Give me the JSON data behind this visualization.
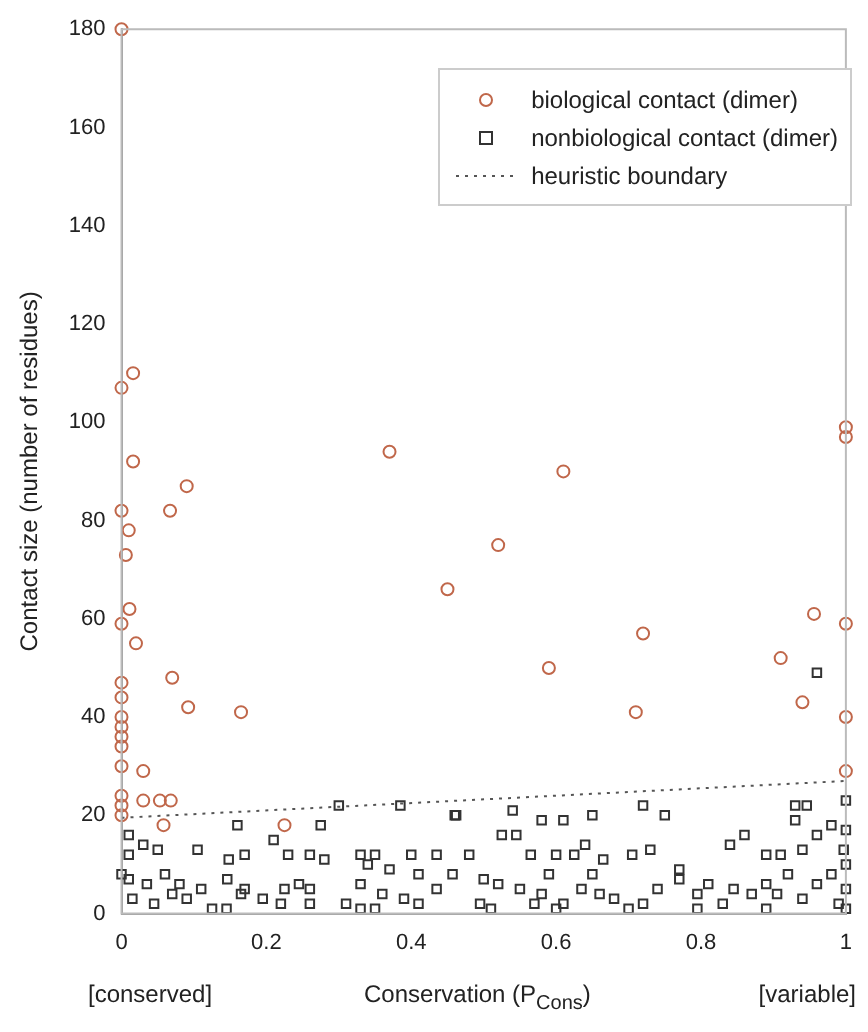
{
  "chart_data": {
    "type": "scatter",
    "xlabel": "Conservation (P$_{Cons}$)",
    "ylabel": "Contact size (number of residues)",
    "annotations": [
      "[conserved]",
      "[variable]"
    ],
    "xlim": [
      0,
      1
    ],
    "xticks": [
      0,
      0.2,
      0.4,
      0.6,
      0.8,
      1
    ],
    "ylim": [
      0,
      180
    ],
    "yticks": [
      0,
      20,
      40,
      60,
      80,
      100,
      120,
      140,
      160,
      180
    ],
    "grid": false,
    "legend": "top right",
    "series": [
      {
        "name": "biological contact (dimer)",
        "color": "#c0674a",
        "marker": "circle",
        "x": [
          0,
          0,
          0.016,
          0.016,
          0,
          0.01,
          0.006,
          0.067,
          0.09,
          0.37,
          0.61,
          0.52,
          1,
          1,
          0.45,
          0.011,
          0,
          0.02,
          0.07,
          0.092,
          0.165,
          0.59,
          0.72,
          0.71,
          0.91,
          0.956,
          0.94,
          1,
          1,
          0,
          0,
          0,
          0,
          0,
          0,
          0,
          0.03,
          0,
          0.03,
          0.053,
          0.068,
          0.058,
          0.225,
          1,
          0,
          0
        ],
        "values": [
          180,
          107,
          110,
          92,
          82,
          78,
          73,
          82,
          87,
          94,
          90,
          75,
          99,
          97,
          66,
          62,
          59,
          55,
          48,
          42,
          41,
          50,
          57,
          41,
          52,
          61,
          43,
          59,
          40,
          47,
          44,
          40,
          38,
          36,
          34,
          30,
          29,
          24,
          23,
          23,
          23,
          18,
          18,
          29,
          22,
          20
        ]
      },
      {
        "name": "nonbiological contact (dimer)",
        "color": "#333333",
        "marker": "square",
        "x": [
          0.3,
          0.385,
          0.46,
          0.16,
          0.275,
          0.01,
          0.03,
          0.01,
          0.05,
          0.105,
          0.148,
          0.17,
          0.21,
          0.23,
          0.26,
          0.28,
          0.33,
          0.35,
          0.37,
          0.4,
          0.41,
          0,
          0.01,
          0.035,
          0.06,
          0.08,
          0.11,
          0.146,
          0.165,
          0.125,
          0.145,
          0.17,
          0.195,
          0.22,
          0.225,
          0.245,
          0.26,
          0.26,
          0.31,
          0.33,
          0.35,
          0.36,
          0.39,
          0.41,
          0.015,
          0.045,
          0.07,
          0.09,
          0.33,
          0.34,
          0.462,
          0.54,
          0.58,
          0.61,
          0.65,
          0.72,
          0.75,
          0.93,
          0.946,
          0.93,
          0.435,
          0.48,
          0.525,
          0.545,
          0.565,
          0.6,
          0.625,
          0.64,
          0.665,
          0.705,
          0.73,
          0.77,
          0.84,
          0.86,
          0.89,
          0.91,
          0.94,
          0.96,
          0.98,
          1,
          0.435,
          0.457,
          0.5,
          0.52,
          0.55,
          0.58,
          0.59,
          0.61,
          0.635,
          0.65,
          0.66,
          0.68,
          0.7,
          0.72,
          0.74,
          0.77,
          0.795,
          0.81,
          0.83,
          0.845,
          0.87,
          0.89,
          0.905,
          0.92,
          0.94,
          0.96,
          0.98,
          0.99,
          1,
          1,
          0.997,
          0.495,
          0.51,
          0.57,
          0.6,
          0.795,
          0.89,
          1,
          1,
          0.96
        ],
        "values": [
          22,
          22,
          20,
          18,
          18,
          16,
          14,
          12,
          13,
          13,
          11,
          12,
          15,
          12,
          12,
          11,
          12,
          12,
          9,
          12,
          8,
          8,
          7,
          6,
          8,
          6,
          5,
          7,
          4,
          1,
          1,
          5,
          3,
          2,
          5,
          6,
          5,
          2,
          2,
          1,
          1,
          4,
          3,
          2,
          3,
          2,
          4,
          3,
          6,
          10,
          20,
          21,
          19,
          19,
          20,
          22,
          20,
          22,
          22,
          19,
          12,
          12,
          16,
          16,
          12,
          12,
          12,
          14,
          11,
          12,
          13,
          9,
          14,
          16,
          12,
          12,
          13,
          16,
          18,
          17,
          5,
          8,
          7,
          6,
          5,
          4,
          8,
          2,
          5,
          8,
          4,
          3,
          1,
          2,
          5,
          7,
          4,
          6,
          2,
          5,
          4,
          6,
          4,
          8,
          3,
          6,
          8,
          2,
          10,
          5,
          13,
          2,
          1,
          2,
          1,
          1,
          1,
          1,
          23,
          49
        ]
      },
      {
        "name": "heuristic boundary",
        "type": "line",
        "color": "#555555",
        "marker": "none",
        "line_style": "dotted",
        "x": [
          0,
          1
        ],
        "values": [
          19.5,
          27
        ]
      }
    ]
  }
}
